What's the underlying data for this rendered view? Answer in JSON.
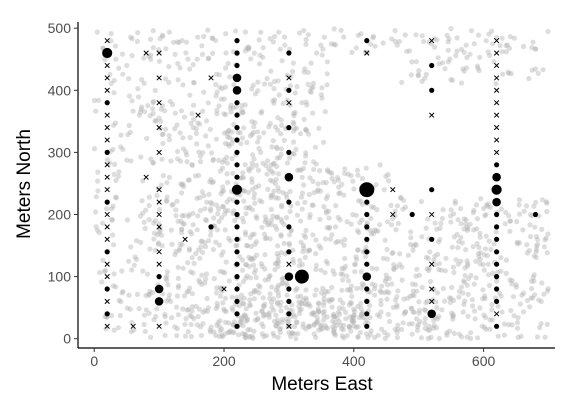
{
  "chart_data": {
    "type": "scatter",
    "title": "",
    "xlabel": "Meters East",
    "ylabel": "Meters North",
    "xlim": [
      -25,
      710
    ],
    "ylim": [
      -15,
      510
    ],
    "xticks": [
      0,
      200,
      400,
      600
    ],
    "yticks": [
      0,
      100,
      200,
      300,
      400,
      500
    ],
    "grid": false,
    "legend": "none",
    "colors": {
      "background_points": "#b3b3b3",
      "foreground_points": "#000000"
    },
    "series": [
      {
        "marker": "filled-circle",
        "note_size": "marker area scales with value",
        "points": [
          [
            20,
            460,
            3
          ],
          [
            20,
            380,
            1
          ],
          [
            20,
            300,
            1
          ],
          [
            20,
            220,
            1
          ],
          [
            20,
            140,
            1
          ],
          [
            20,
            80,
            1
          ],
          [
            20,
            40,
            1
          ],
          [
            100,
            100,
            1
          ],
          [
            100,
            80,
            2
          ],
          [
            100,
            60,
            2
          ],
          [
            180,
            180,
            1
          ],
          [
            220,
            480,
            1
          ],
          [
            220,
            460,
            1
          ],
          [
            220,
            440,
            1
          ],
          [
            220,
            420,
            2
          ],
          [
            220,
            400,
            2
          ],
          [
            220,
            380,
            1
          ],
          [
            220,
            360,
            1
          ],
          [
            220,
            340,
            1
          ],
          [
            220,
            320,
            1
          ],
          [
            220,
            300,
            1
          ],
          [
            220,
            280,
            1
          ],
          [
            220,
            260,
            1
          ],
          [
            220,
            240,
            3
          ],
          [
            220,
            220,
            1
          ],
          [
            220,
            200,
            1
          ],
          [
            220,
            180,
            1
          ],
          [
            220,
            160,
            1
          ],
          [
            220,
            140,
            1
          ],
          [
            220,
            120,
            1
          ],
          [
            220,
            100,
            1
          ],
          [
            220,
            80,
            1
          ],
          [
            220,
            60,
            1
          ],
          [
            220,
            40,
            1
          ],
          [
            220,
            20,
            1
          ],
          [
            300,
            460,
            1
          ],
          [
            300,
            400,
            1
          ],
          [
            300,
            340,
            1
          ],
          [
            300,
            300,
            1
          ],
          [
            300,
            260,
            2
          ],
          [
            300,
            220,
            1
          ],
          [
            300,
            180,
            1
          ],
          [
            300,
            140,
            1
          ],
          [
            300,
            100,
            2
          ],
          [
            300,
            80,
            1
          ],
          [
            300,
            60,
            1
          ],
          [
            300,
            40,
            1
          ],
          [
            320,
            100,
            6
          ],
          [
            420,
            240,
            7
          ],
          [
            420,
            220,
            1
          ],
          [
            420,
            200,
            1
          ],
          [
            420,
            180,
            1
          ],
          [
            420,
            160,
            1
          ],
          [
            420,
            140,
            1
          ],
          [
            420,
            120,
            1
          ],
          [
            420,
            100,
            2
          ],
          [
            420,
            80,
            1
          ],
          [
            420,
            60,
            1
          ],
          [
            420,
            40,
            1
          ],
          [
            420,
            20,
            1
          ],
          [
            420,
            480,
            1
          ],
          [
            490,
            200,
            1
          ],
          [
            520,
            440,
            1
          ],
          [
            520,
            400,
            1
          ],
          [
            520,
            240,
            1
          ],
          [
            520,
            160,
            1
          ],
          [
            520,
            40,
            2
          ],
          [
            620,
            260,
            2
          ],
          [
            620,
            240,
            3
          ],
          [
            620,
            220,
            2
          ],
          [
            620,
            200,
            1
          ],
          [
            620,
            180,
            1
          ],
          [
            620,
            160,
            1
          ],
          [
            620,
            140,
            1
          ],
          [
            620,
            120,
            1
          ],
          [
            620,
            100,
            1
          ],
          [
            620,
            80,
            1
          ],
          [
            620,
            60,
            1
          ],
          [
            620,
            20,
            1
          ],
          [
            620,
            280,
            1
          ],
          [
            680,
            200,
            1
          ]
        ]
      },
      {
        "marker": "x",
        "points": [
          [
            20,
            480
          ],
          [
            20,
            440
          ],
          [
            20,
            420
          ],
          [
            20,
            400
          ],
          [
            20,
            360
          ],
          [
            20,
            340
          ],
          [
            20,
            320
          ],
          [
            20,
            280
          ],
          [
            20,
            260
          ],
          [
            20,
            240
          ],
          [
            20,
            200
          ],
          [
            20,
            180
          ],
          [
            20,
            160
          ],
          [
            20,
            120
          ],
          [
            20,
            100
          ],
          [
            20,
            60
          ],
          [
            20,
            20
          ],
          [
            80,
            460
          ],
          [
            80,
            260
          ],
          [
            60,
            20
          ],
          [
            100,
            460
          ],
          [
            100,
            420
          ],
          [
            100,
            380
          ],
          [
            100,
            340
          ],
          [
            100,
            300
          ],
          [
            100,
            240
          ],
          [
            100,
            220
          ],
          [
            100,
            200
          ],
          [
            100,
            180
          ],
          [
            100,
            140
          ],
          [
            100,
            120
          ],
          [
            100,
            20
          ],
          [
            140,
            160
          ],
          [
            160,
            360
          ],
          [
            180,
            420
          ],
          [
            200,
            80
          ],
          [
            300,
            420
          ],
          [
            300,
            380
          ],
          [
            300,
            120
          ],
          [
            300,
            20
          ],
          [
            420,
            460
          ],
          [
            460,
            240
          ],
          [
            460,
            200
          ],
          [
            520,
            480
          ],
          [
            520,
            360
          ],
          [
            520,
            200
          ],
          [
            520,
            120
          ],
          [
            520,
            80
          ],
          [
            520,
            60
          ],
          [
            620,
            480
          ],
          [
            620,
            460
          ],
          [
            620,
            440
          ],
          [
            620,
            420
          ],
          [
            620,
            400
          ],
          [
            620,
            380
          ],
          [
            620,
            360
          ],
          [
            620,
            340
          ],
          [
            620,
            320
          ],
          [
            620,
            300
          ],
          [
            620,
            40
          ]
        ]
      }
    ]
  }
}
